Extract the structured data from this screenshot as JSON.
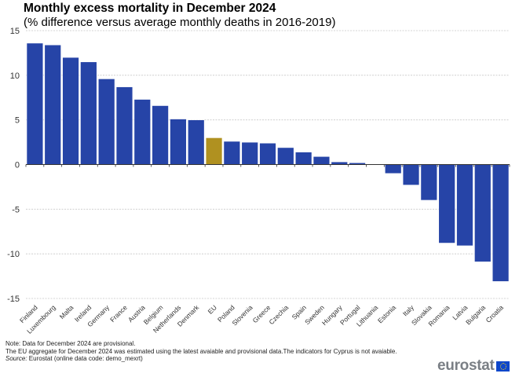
{
  "chart_data": {
    "type": "bar",
    "title": "Monthly excess mortality in December 2024",
    "subtitle": "(% difference versus average monthly  deaths in 2016-2019)",
    "xlabel": "",
    "ylabel": "",
    "ylim": [
      -15,
      15
    ],
    "yticks": [
      15,
      10,
      5,
      0,
      -5,
      -10,
      -15
    ],
    "grid": true,
    "legend": "none",
    "categories": [
      "Finland",
      "Luxembourg",
      "Malta",
      "Ireland",
      "Germany",
      "France",
      "Austria",
      "Belgium",
      "Netherlands",
      "Denmark",
      "EU",
      "Poland",
      "Slovenia",
      "Greece",
      "Czechia",
      "Spain",
      "Sweden",
      "Hungary",
      "Portugal",
      "Lithuania",
      "Estonia",
      "Italy",
      "Slovakia",
      "Romania",
      "Latvia",
      "Bulgaria",
      "Croatia"
    ],
    "values": [
      13.6,
      13.4,
      12.0,
      11.5,
      9.6,
      8.7,
      7.3,
      6.6,
      5.1,
      5.0,
      3.0,
      2.6,
      2.5,
      2.4,
      1.9,
      1.4,
      0.9,
      0.3,
      0.2,
      0.0,
      -1.0,
      -2.3,
      -4.0,
      -8.8,
      -9.1,
      -10.9,
      -13.1
    ],
    "colors": {
      "default": "#2644a7",
      "highlight": "#b09120",
      "highlight_category": "EU"
    }
  },
  "notes": {
    "line1": "Note: Data  for December 2024 are provisional.",
    "line2": "The EU  aggregate for December 2024 was estimated using the latest avaiable and provisional data.The indicators for Cyprus is not avaiable.",
    "source_label": "Source:",
    "source_text": " Eurostat (online data code: demo_mexrt)"
  },
  "logo": {
    "text": "eurostat",
    "icon": "eu-flag-icon"
  }
}
